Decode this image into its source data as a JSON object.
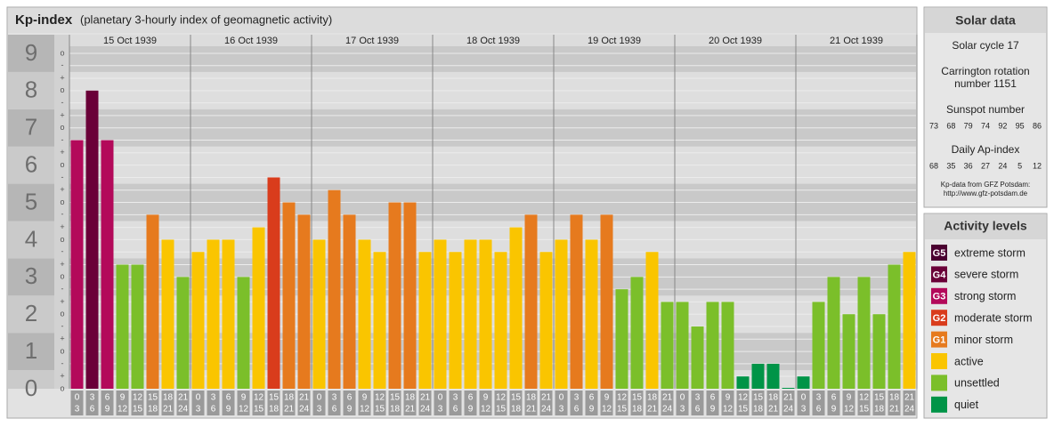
{
  "title": "Kp-index",
  "subtitle": "(planetary 3-hourly index of geomagnetic activity)",
  "chart_data": {
    "type": "bar",
    "days": [
      "15 Oct 1939",
      "16 Oct 1939",
      "17 Oct 1939",
      "18 Oct 1939",
      "19 Oct 1939",
      "20 Oct 1939",
      "21 Oct 1939"
    ],
    "hours": [
      0,
      3,
      6,
      9,
      12,
      15,
      18,
      21,
      24
    ],
    "values": [
      6.67,
      8,
      6.67,
      3.33,
      3.33,
      4.67,
      4,
      3,
      3.67,
      4,
      4,
      3,
      4.33,
      5.67,
      5,
      4.67,
      4,
      5.33,
      4.67,
      4,
      3.67,
      5,
      5,
      3.67,
      4,
      3.67,
      4,
      4,
      3.67,
      4.33,
      4.67,
      3.67,
      4,
      4.67,
      4,
      4.67,
      2.67,
      3,
      3.67,
      2.33,
      2.33,
      1.67,
      2.33,
      2.33,
      0.33,
      0.67,
      0.67,
      0,
      0.33,
      2.33,
      3,
      2,
      3,
      2,
      3.33,
      3.67
    ],
    "colors": [
      "#b3095a",
      "#6a0038",
      "#b3095a",
      "#7bbf2a",
      "#7bbf2a",
      "#e67a1e",
      "#fac500",
      "#7bbf2a",
      "#fac500",
      "#fac500",
      "#fac500",
      "#7bbf2a",
      "#fac500",
      "#d93c1c",
      "#e67a1e",
      "#e67a1e",
      "#fac500",
      "#e67a1e",
      "#e67a1e",
      "#fac500",
      "#fac500",
      "#e67a1e",
      "#e67a1e",
      "#fac500",
      "#fac500",
      "#fac500",
      "#fac500",
      "#fac500",
      "#fac500",
      "#fac500",
      "#e67a1e",
      "#fac500",
      "#fac500",
      "#e67a1e",
      "#fac500",
      "#e67a1e",
      "#7bbf2a",
      "#7bbf2a",
      "#fac500",
      "#7bbf2a",
      "#7bbf2a",
      "#7bbf2a",
      "#7bbf2a",
      "#7bbf2a",
      "#009447",
      "#009447",
      "#009447",
      "#009447",
      "#009447",
      "#7bbf2a",
      "#7bbf2a",
      "#7bbf2a",
      "#7bbf2a",
      "#7bbf2a",
      "#7bbf2a",
      "#fac500"
    ],
    "ylim": [
      0,
      9.5
    ],
    "yticks": [
      0,
      1,
      2,
      3,
      4,
      5,
      6,
      7,
      8,
      9
    ],
    "minor_yticks": [
      {
        "value": 0,
        "label": "o"
      },
      {
        "value": 0.33,
        "label": "+"
      },
      {
        "value": 0.67,
        "label": "-"
      },
      {
        "value": 1,
        "label": "o"
      },
      {
        "value": 1.33,
        "label": "+"
      },
      {
        "value": 1.67,
        "label": "-"
      },
      {
        "value": 2,
        "label": "o"
      },
      {
        "value": 2.33,
        "label": "+"
      },
      {
        "value": 2.67,
        "label": "-"
      },
      {
        "value": 3,
        "label": "o"
      },
      {
        "value": 3.33,
        "label": "+"
      },
      {
        "value": 3.67,
        "label": "-"
      },
      {
        "value": 4,
        "label": "o"
      },
      {
        "value": 4.33,
        "label": "+"
      },
      {
        "value": 4.67,
        "label": "-"
      },
      {
        "value": 5,
        "label": "o"
      },
      {
        "value": 5.33,
        "label": "+"
      },
      {
        "value": 5.67,
        "label": "-"
      },
      {
        "value": 6,
        "label": "o"
      },
      {
        "value": 6.33,
        "label": "+"
      },
      {
        "value": 6.67,
        "label": "-"
      },
      {
        "value": 7,
        "label": "o"
      },
      {
        "value": 7.33,
        "label": "+"
      },
      {
        "value": 7.67,
        "label": "-"
      },
      {
        "value": 8,
        "label": "o"
      },
      {
        "value": 8.33,
        "label": "+"
      },
      {
        "value": 8.67,
        "label": "-"
      },
      {
        "value": 9,
        "label": "o"
      }
    ]
  },
  "solar_data": {
    "title": "Solar data",
    "cycle": "Solar cycle 17",
    "carrington": [
      "Carrington rotation",
      "number 1151"
    ],
    "sunspot_label": "Sunspot number",
    "sunspots": [
      73,
      68,
      79,
      74,
      92,
      95,
      86
    ],
    "ap_label": "Daily Ap-index",
    "ap": [
      68,
      35,
      36,
      27,
      24,
      5,
      12
    ],
    "source": "Kp-data from GFZ Potsdam:",
    "source_url": "http://www.gfz-potsdam.de"
  },
  "activity_levels": {
    "title": "Activity levels",
    "items": [
      {
        "badge": "G5",
        "label": "extreme storm",
        "color": "#4a0030"
      },
      {
        "badge": "G4",
        "label": "severe storm",
        "color": "#6a0038"
      },
      {
        "badge": "G3",
        "label": "strong storm",
        "color": "#b3095a"
      },
      {
        "badge": "G2",
        "label": "moderate storm",
        "color": "#d93c1c"
      },
      {
        "badge": "G1",
        "label": "minor storm",
        "color": "#e67a1e"
      },
      {
        "label": "active",
        "color": "#fac500"
      },
      {
        "label": "unsettled",
        "color": "#7bbf2a"
      },
      {
        "label": "quiet",
        "color": "#009447"
      }
    ]
  }
}
